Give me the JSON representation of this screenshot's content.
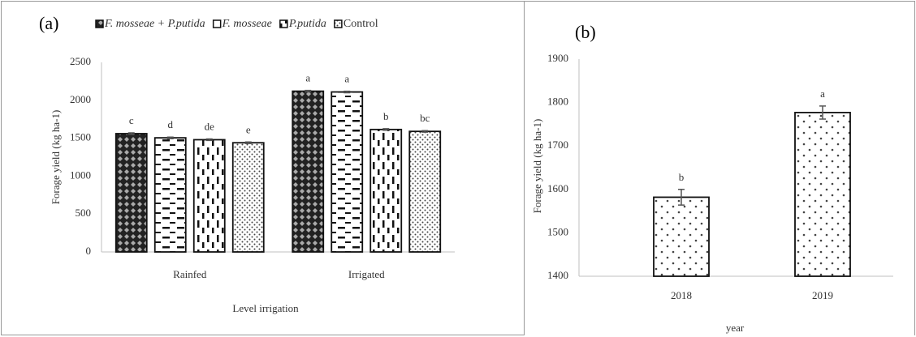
{
  "chart_data": [
    {
      "type": "bar",
      "title": "(a)",
      "y_label": "Forage yield (kg ha-1)",
      "x_label": "Level irrigation",
      "categories": [
        "Rainfed",
        "Irrigated"
      ],
      "series": [
        {
          "name": "F. mosseae + P.putida",
          "pattern": "crosshatch",
          "values": [
            1560,
            2120
          ],
          "errors": [
            10,
            10
          ],
          "letters": [
            "c",
            "a"
          ]
        },
        {
          "name": "F. mosseae",
          "pattern": "hdash",
          "values": [
            1505,
            2110
          ],
          "errors": [
            10,
            10
          ],
          "letters": [
            "d",
            "a"
          ]
        },
        {
          "name": "P.putida",
          "pattern": "vdash",
          "values": [
            1480,
            1615
          ],
          "errors": [
            10,
            10
          ],
          "letters": [
            "de",
            "b"
          ]
        },
        {
          "name": "Control",
          "pattern": "dots",
          "values": [
            1440,
            1590
          ],
          "errors": [
            10,
            10
          ],
          "letters": [
            "e",
            "bc"
          ]
        }
      ],
      "ylim": [
        0,
        2500
      ],
      "yticks": [
        0,
        500,
        1000,
        1500,
        2000,
        2500
      ],
      "legend": "top"
    },
    {
      "type": "bar",
      "title": "(b)",
      "y_label": "Forage yield (kg ha-1)",
      "x_label": "year",
      "categories": [
        "2018",
        "2019"
      ],
      "series": [
        {
          "pattern": "sparsedots",
          "values": [
            1582,
            1777
          ],
          "errors": [
            18,
            15
          ],
          "letters": [
            "b",
            "a"
          ]
        }
      ],
      "ylim": [
        1400,
        1900
      ],
      "yticks": [
        1400,
        1500,
        1600,
        1700,
        1800,
        1900
      ]
    }
  ]
}
